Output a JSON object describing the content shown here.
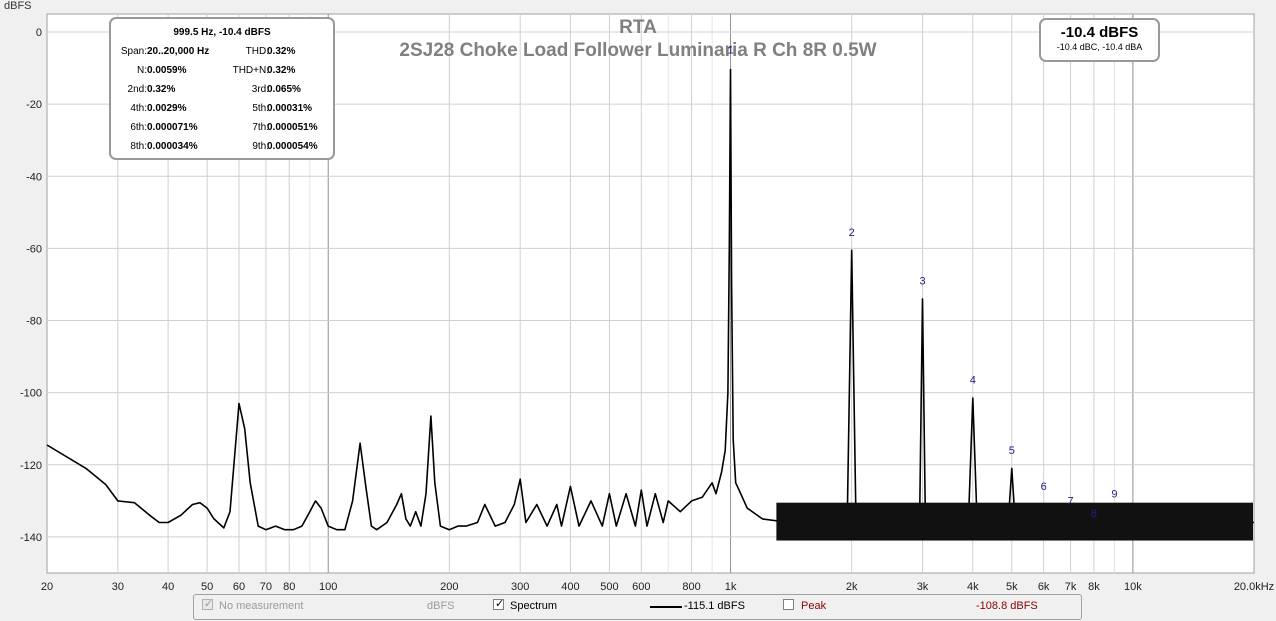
{
  "chart_data": {
    "type": "line",
    "title": "RTA",
    "subtitle": "2SJ28 Choke Load Follower Luminaria R Ch 8R 0.5W",
    "ylabel": "dBFS",
    "xlabel": "",
    "xscale": "log",
    "xlim": [
      20,
      20000
    ],
    "ylim": [
      -150,
      5
    ],
    "grid": true,
    "legend": "bottom",
    "y_ticks": [
      0,
      -20,
      -40,
      -60,
      -80,
      -100,
      -120,
      -140
    ],
    "y_tick_labels": [
      "0",
      "-20",
      "-40",
      "-60",
      "-80",
      "-100",
      "-120",
      "-140"
    ],
    "x_ticks": [
      20,
      30,
      40,
      50,
      60,
      70,
      80,
      100,
      200,
      300,
      400,
      500,
      600,
      800,
      1000,
      2000,
      3000,
      4000,
      5000,
      6000,
      7000,
      8000,
      10000,
      20000
    ],
    "x_tick_labels": [
      "20",
      "30",
      "40",
      "50",
      "60",
      "70",
      "80",
      "100",
      "200",
      "300",
      "400",
      "500",
      "600",
      "800",
      "1k",
      "2k",
      "3k",
      "4k",
      "5k",
      "6k",
      "7k",
      "8k",
      "10k",
      "20.0kHz"
    ],
    "series": [
      {
        "name": "Spectrum",
        "color": "#000000",
        "x": [
          20,
          25,
          28,
          30,
          33,
          36,
          38,
          40,
          43,
          46,
          48,
          50,
          52,
          55,
          57,
          60,
          62,
          64,
          67,
          70,
          74,
          78,
          82,
          86,
          90,
          93,
          96,
          100,
          105,
          110,
          115,
          120,
          124,
          128,
          132,
          140,
          148,
          152,
          156,
          160,
          165,
          170,
          175,
          180,
          184,
          190,
          200,
          210,
          220,
          235,
          245,
          260,
          275,
          290,
          300,
          310,
          330,
          350,
          370,
          380,
          400,
          420,
          450,
          480,
          500,
          520,
          550,
          580,
          600,
          620,
          650,
          680,
          700,
          750,
          800,
          850,
          900,
          920,
          950,
          970,
          985,
          993,
          999.5,
          1006,
          1015,
          1030,
          1060,
          1100,
          1200,
          1400,
          1600,
          1800,
          1950,
          2000,
          2050,
          2200,
          2500,
          2800,
          2950,
          3000,
          3050,
          3300,
          3600,
          3900,
          4000,
          4100,
          4500,
          4900,
          5000,
          5100,
          5500,
          6000,
          6500,
          7000,
          7500,
          8000,
          9000,
          10000,
          12000,
          15000,
          20000
        ],
        "values": [
          -114.5,
          -121,
          -125.5,
          -130,
          -130.5,
          -134,
          -136,
          -136,
          -134,
          -131,
          -130.5,
          -132,
          -135,
          -137.5,
          -133,
          -103,
          -110,
          -125,
          -137,
          -138,
          -137,
          -138,
          -138,
          -137,
          -133,
          -130,
          -132,
          -137,
          -138,
          -138,
          -130,
          -114,
          -126,
          -137,
          -138,
          -136,
          -131,
          -128,
          -135,
          -137,
          -133,
          -137,
          -128,
          -106.5,
          -125,
          -137,
          -138,
          -137,
          -137,
          -136,
          -131,
          -137,
          -136,
          -131,
          -124,
          -136,
          -131,
          -137,
          -131,
          -137,
          -126,
          -137,
          -130,
          -137,
          -128,
          -137,
          -128,
          -137,
          -127,
          -137,
          -128,
          -136,
          -130,
          -133,
          -130,
          -129,
          -125,
          -128,
          -122,
          -116,
          -100,
          -60,
          -10.4,
          -70,
          -113,
          -125,
          -128,
          -132,
          -135,
          -136,
          -136,
          -136,
          -136,
          -60.5,
          -136,
          -136,
          -136,
          -136,
          -136,
          -74,
          -136,
          -136,
          -136,
          -136,
          -101.5,
          -136,
          -136,
          -136,
          -121,
          -136,
          -136,
          -136,
          -136,
          -136,
          -136,
          -136,
          -136,
          -136,
          -136,
          -136,
          -136
        ]
      }
    ],
    "harmonic_labels": [
      {
        "label": "1",
        "x": 1000,
        "y": -6
      },
      {
        "label": "2",
        "x": 2000,
        "y": -56.5
      },
      {
        "label": "3",
        "x": 3000,
        "y": -70
      },
      {
        "label": "4",
        "x": 4000,
        "y": -97.5
      },
      {
        "label": "5",
        "x": 5000,
        "y": -117
      },
      {
        "label": "6",
        "x": 6000,
        "y": -127
      },
      {
        "label": "7",
        "x": 7000,
        "y": -131
      },
      {
        "label": "8",
        "x": 8000,
        "y": -134.5
      },
      {
        "label": "9",
        "x": 9000,
        "y": -129
      }
    ]
  },
  "stats": {
    "header": "999.5 Hz, -10.4 dBFS",
    "rows": [
      {
        "l1": "Span:",
        "v1": "20..20,000 Hz",
        "l2": "THD:",
        "v2": "0.32%"
      },
      {
        "l1": "N:",
        "v1": "0.0059%",
        "l2": "THD+N:",
        "v2": "0.32%"
      },
      {
        "l1": "2nd:",
        "v1": "0.32%",
        "l2": "3rd:",
        "v2": "0.065%"
      },
      {
        "l1": "4th:",
        "v1": "0.0029%",
        "l2": "5th:",
        "v2": "0.00031%"
      },
      {
        "l1": "6th:",
        "v1": "0.000071%",
        "l2": "7th:",
        "v2": "0.000051%"
      },
      {
        "l1": "8th:",
        "v1": "0.000034%",
        "l2": "9th:",
        "v2": "0.000054%"
      }
    ]
  },
  "level": {
    "main": "-10.4 dBFS",
    "sub": "-10.4 dBC, -10.4 dBA"
  },
  "legend": {
    "no_measurement_label": "No measurement",
    "no_measurement_unit": "dBFS",
    "spectrum_label": "Spectrum",
    "spectrum_value": "-115.1 dBFS",
    "peak_label": "Peak",
    "peak_value": "-108.8 dBFS"
  }
}
